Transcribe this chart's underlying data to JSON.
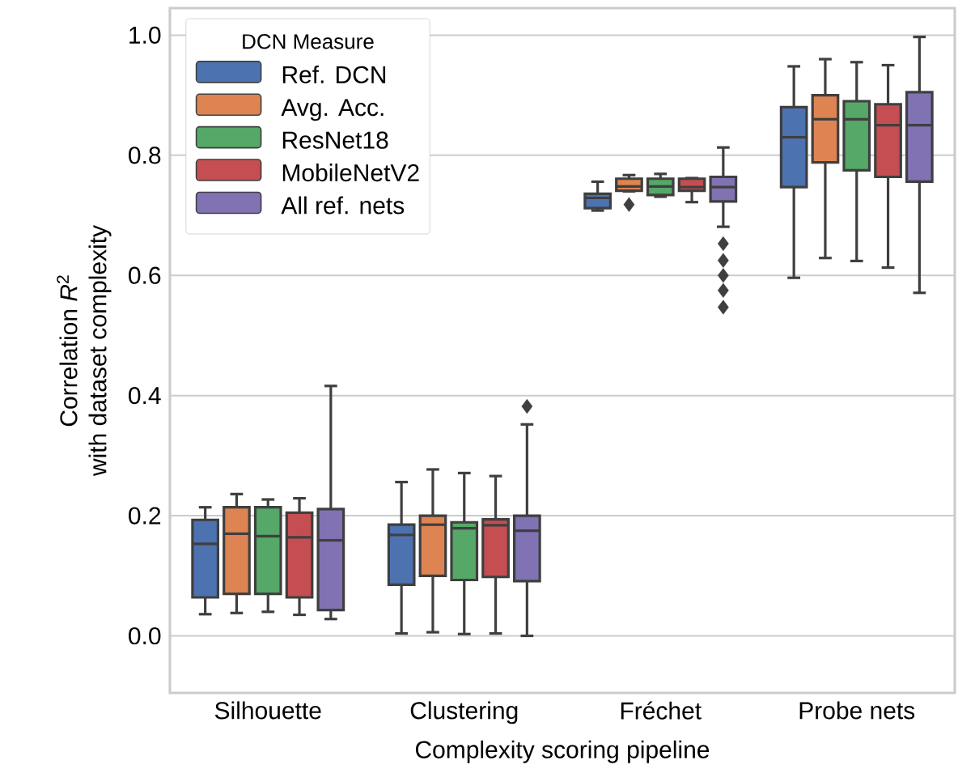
{
  "chart_data": {
    "type": "box",
    "xlabel": "Complexity scoring pipeline",
    "ylabel": "Correlation *R*$^{2}$\nwith dataset complexity",
    "legend_title": "DCN Measure",
    "categories": [
      "Silhouette",
      "Clustering",
      "Fréchet",
      "Probe nets"
    ],
    "ylim": [
      -0.095,
      1.045
    ],
    "yticks": [
      {
        "value": 0,
        "label": "0.0"
      },
      {
        "value": 0.2,
        "label": "0.2"
      },
      {
        "value": 0.4,
        "label": "0.4"
      },
      {
        "value": 0.6,
        "label": "0.6"
      },
      {
        "value": 0.8,
        "label": "0.8"
      },
      {
        "value": 1.0,
        "label": "1.0"
      }
    ],
    "grid": "y",
    "legend": "top left",
    "series": [
      {
        "name": "Ref. DCN",
        "color": "#4c72b0",
        "boxes": [
          {
            "low": 0.036,
            "q1": 0.064,
            "median": 0.153,
            "q3": 0.193,
            "high": 0.214
          },
          {
            "low": 0.004,
            "q1": 0.085,
            "median": 0.168,
            "q3": 0.185,
            "high": 0.256
          },
          {
            "low": 0.708,
            "q1": 0.712,
            "median": 0.729,
            "q3": 0.736,
            "high": 0.756
          },
          {
            "low": 0.596,
            "q1": 0.747,
            "median": 0.83,
            "q3": 0.88,
            "high": 0.948
          }
        ]
      },
      {
        "name": "Avg. Acc.",
        "color": "#dd8452",
        "boxes": [
          {
            "low": 0.038,
            "q1": 0.07,
            "median": 0.17,
            "q3": 0.214,
            "high": 0.236
          },
          {
            "low": 0.006,
            "q1": 0.1,
            "median": 0.185,
            "q3": 0.2,
            "high": 0.277
          },
          {
            "low": 0.74,
            "q1": 0.741,
            "median": 0.748,
            "q3": 0.761,
            "high": 0.767,
            "outliers": [
              0.718
            ]
          },
          {
            "low": 0.629,
            "q1": 0.788,
            "median": 0.86,
            "q3": 0.9,
            "high": 0.96
          }
        ]
      },
      {
        "name": "ResNet18",
        "color": "#55a868",
        "boxes": [
          {
            "low": 0.04,
            "q1": 0.07,
            "median": 0.166,
            "q3": 0.214,
            "high": 0.227
          },
          {
            "low": 0.003,
            "q1": 0.093,
            "median": 0.179,
            "q3": 0.189,
            "high": 0.271
          },
          {
            "low": 0.731,
            "q1": 0.734,
            "median": 0.748,
            "q3": 0.761,
            "high": 0.769
          },
          {
            "low": 0.624,
            "q1": 0.775,
            "median": 0.86,
            "q3": 0.89,
            "high": 0.955
          }
        ]
      },
      {
        "name": "MobileNetV2",
        "color": "#c44e52",
        "boxes": [
          {
            "low": 0.035,
            "q1": 0.064,
            "median": 0.164,
            "q3": 0.205,
            "high": 0.229
          },
          {
            "low": 0.004,
            "q1": 0.098,
            "median": 0.184,
            "q3": 0.194,
            "high": 0.266
          },
          {
            "low": 0.722,
            "q1": 0.741,
            "median": 0.747,
            "q3": 0.761,
            "high": 0.762
          },
          {
            "low": 0.613,
            "q1": 0.764,
            "median": 0.85,
            "q3": 0.885,
            "high": 0.95
          }
        ]
      },
      {
        "name": "All ref. nets",
        "color": "#8172b3",
        "boxes": [
          {
            "low": 0.028,
            "q1": 0.043,
            "median": 0.159,
            "q3": 0.211,
            "high": 0.416
          },
          {
            "low": 0.0,
            "q1": 0.091,
            "median": 0.175,
            "q3": 0.2,
            "high": 0.352,
            "outliers": [
              0.382
            ]
          },
          {
            "low": 0.681,
            "q1": 0.723,
            "median": 0.747,
            "q3": 0.764,
            "high": 0.813,
            "outliers": [
              0.653,
              0.625,
              0.6,
              0.575,
              0.547
            ]
          },
          {
            "low": 0.571,
            "q1": 0.756,
            "median": 0.85,
            "q3": 0.905,
            "high": 0.997
          }
        ]
      }
    ]
  }
}
